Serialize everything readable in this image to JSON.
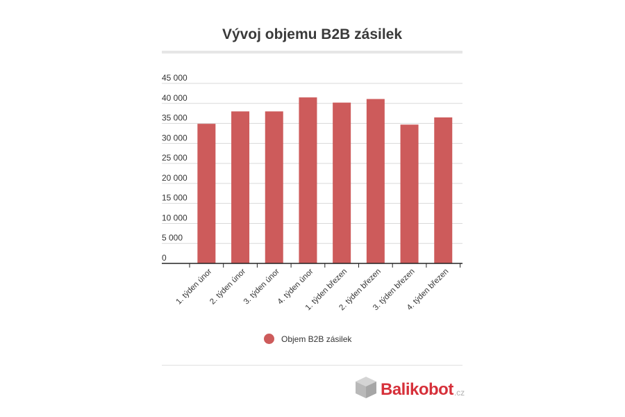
{
  "title": "Vývoj objemu B2B zásilek",
  "legend": {
    "label": "Objem B2B zásilek",
    "color": "#cd5b5b"
  },
  "logo": {
    "name": "Balikobot",
    "tld": ".cz",
    "brand_color": "#d6303a"
  },
  "chart_data": {
    "type": "bar",
    "title": "Vývoj objemu B2B zásilek",
    "xlabel": "",
    "ylabel": "",
    "categories": [
      "1. týden únor",
      "2. týden únor",
      "3. týden únor",
      "4. týden únor",
      "1. týden březen",
      "2. týden březen",
      "3. týden březen",
      "4. týden březen"
    ],
    "series": [
      {
        "name": "Objem B2B zásilek",
        "color": "#cd5b5b",
        "values": [
          34900,
          38000,
          38000,
          41500,
          40200,
          41100,
          34700,
          36500
        ]
      }
    ],
    "ylim": [
      0,
      45000
    ],
    "yticks": [
      0,
      5000,
      10000,
      15000,
      20000,
      25000,
      30000,
      35000,
      40000,
      45000
    ],
    "ytick_labels": [
      "0",
      "5 000",
      "10 000",
      "15 000",
      "20 000",
      "25 000",
      "30 000",
      "35 000",
      "40 000",
      "45 000"
    ],
    "grid": true,
    "legend_position": "bottom"
  }
}
